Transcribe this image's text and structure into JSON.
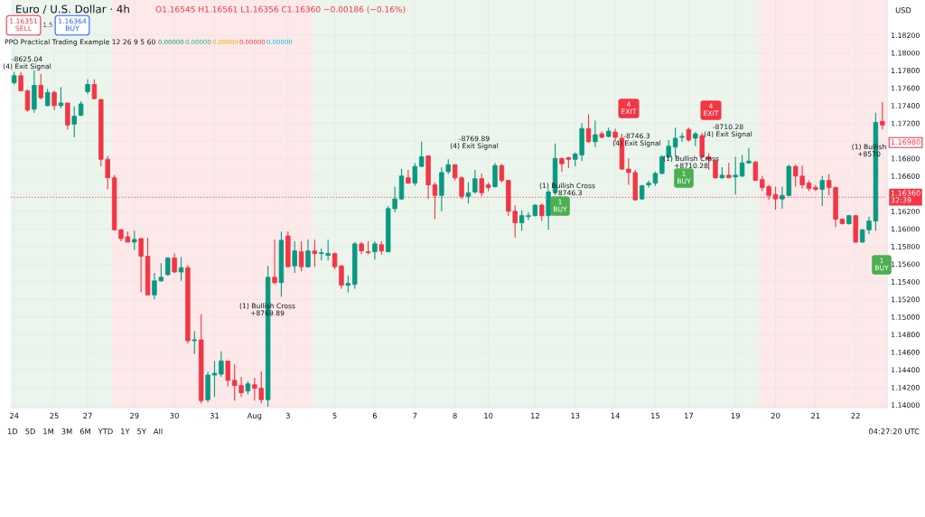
{
  "chart_data": {
    "type": "candlestick",
    "title": "Euro / U.S. Dollar · 4h",
    "subtitle": "O1.16545 H1.16561 L1.16356 C1.16360 −0.00186 (−0.16%)",
    "categories": [
      "24",
      null,
      null,
      null,
      null,
      null,
      "25",
      null,
      null,
      null,
      null,
      "27",
      null,
      null,
      null,
      null,
      null,
      null,
      "29",
      null,
      null,
      null,
      null,
      null,
      "30",
      null,
      null,
      null,
      null,
      null,
      "31",
      null,
      null,
      null,
      null,
      null,
      "Aug",
      null,
      null,
      null,
      null,
      "3",
      null,
      null,
      null,
      null,
      null,
      null,
      "5",
      null,
      null,
      null,
      null,
      null,
      "6",
      null,
      null,
      null,
      null,
      null,
      "7",
      null,
      null,
      null,
      null,
      null,
      "8",
      null,
      null,
      null,
      null,
      "10",
      null,
      null,
      null,
      null,
      null,
      null,
      "12",
      null,
      null,
      null,
      null,
      null,
      "13",
      null,
      null,
      null,
      null,
      null,
      "14",
      null,
      null,
      null,
      null,
      null,
      "15",
      null,
      null,
      null,
      null,
      "17",
      null,
      null,
      null,
      null,
      null,
      null,
      "19",
      null,
      null,
      null,
      null,
      null,
      "20",
      null,
      null,
      null,
      null,
      null,
      "21",
      null,
      null,
      null,
      null,
      null,
      "22",
      null,
      null,
      null,
      null
    ],
    "ohlc": [
      [
        1.1766,
        1.1778,
        1.1764,
        1.1774
      ],
      [
        1.1774,
        1.1778,
        1.1756,
        1.1757
      ],
      [
        1.1757,
        1.1758,
        1.1733,
        1.1735
      ],
      [
        1.1736,
        1.178,
        1.1732,
        1.1763
      ],
      [
        1.1763,
        1.1776,
        1.1747,
        1.1749
      ],
      [
        1.174,
        1.1759,
        1.1739,
        1.1755
      ],
      [
        1.1755,
        1.1757,
        1.1735,
        1.174
      ],
      [
        1.174,
        1.1761,
        1.1737,
        1.1743
      ],
      [
        1.1743,
        1.1743,
        1.1713,
        1.1718
      ],
      [
        1.1719,
        1.1739,
        1.1704,
        1.1728
      ],
      [
        1.1729,
        1.1745,
        1.1728,
        1.1742
      ],
      [
        1.1756,
        1.177,
        1.1753,
        1.1764
      ],
      [
        1.1764,
        1.177,
        1.1747,
        1.1748
      ],
      [
        1.1747,
        1.1747,
        1.1671,
        1.1679
      ],
      [
        1.1679,
        1.1683,
        1.1645,
        1.1658
      ],
      [
        1.1658,
        1.1661,
        1.1598,
        1.1599
      ],
      [
        1.1599,
        1.16,
        1.1586,
        1.1589
      ],
      [
        1.1591,
        1.1597,
        1.1585,
        1.1585
      ],
      [
        1.1585,
        1.1598,
        1.1576,
        1.1588
      ],
      [
        1.1589,
        1.159,
        1.1528,
        1.1569
      ],
      [
        1.1569,
        1.159,
        1.1525,
        1.1525
      ],
      [
        1.1525,
        1.155,
        1.152,
        1.1541
      ],
      [
        1.1541,
        1.1561,
        1.154,
        1.1545
      ],
      [
        1.1548,
        1.1568,
        1.1547,
        1.1567
      ],
      [
        1.1567,
        1.1572,
        1.155,
        1.1551
      ],
      [
        1.1551,
        1.1568,
        1.1541,
        1.1556
      ],
      [
        1.1556,
        1.1559,
        1.147,
        1.1473
      ],
      [
        1.1473,
        1.1484,
        1.1458,
        1.1474
      ],
      [
        1.1474,
        1.1503,
        1.1402,
        1.1405
      ],
      [
        1.1406,
        1.1438,
        1.1403,
        1.1434
      ],
      [
        1.1434,
        1.145,
        1.1409,
        1.1436
      ],
      [
        1.1435,
        1.1461,
        1.1432,
        1.145
      ],
      [
        1.145,
        1.145,
        1.1421,
        1.1428
      ],
      [
        1.1428,
        1.1446,
        1.1405,
        1.1422
      ],
      [
        1.1422,
        1.1432,
        1.1409,
        1.1414
      ],
      [
        1.1416,
        1.1427,
        1.1412,
        1.1424
      ],
      [
        1.1423,
        1.1431,
        1.1405,
        1.1419
      ],
      [
        1.1419,
        1.1438,
        1.1402,
        1.1406
      ],
      [
        1.1406,
        1.1558,
        1.1398,
        1.1545
      ],
      [
        1.1545,
        1.1588,
        1.1537,
        1.1539
      ],
      [
        1.1539,
        1.1597,
        1.1523,
        1.1587
      ],
      [
        1.1592,
        1.1597,
        1.1557,
        1.1557
      ],
      [
        1.1558,
        1.1586,
        1.155,
        1.1575
      ],
      [
        1.1574,
        1.1586,
        1.1552,
        1.1557
      ],
      [
        1.1557,
        1.1588,
        1.1556,
        1.1575
      ],
      [
        1.1575,
        1.1588,
        1.1557,
        1.1572
      ],
      [
        1.1572,
        1.1578,
        1.1564,
        1.1573
      ],
      [
        1.157,
        1.1588,
        1.1564,
        1.1572
      ],
      [
        1.1572,
        1.1573,
        1.1554,
        1.1557
      ],
      [
        1.1558,
        1.1559,
        1.1532,
        1.1536
      ],
      [
        1.1536,
        1.1547,
        1.1528,
        1.1538
      ],
      [
        1.1537,
        1.1585,
        1.1532,
        1.1583
      ],
      [
        1.1583,
        1.1585,
        1.1571,
        1.1575
      ],
      [
        1.1574,
        1.1586,
        1.1571,
        1.1573
      ],
      [
        1.1574,
        1.1586,
        1.1565,
        1.1583
      ],
      [
        1.1582,
        1.1586,
        1.1571,
        1.1575
      ],
      [
        1.1574,
        1.1626,
        1.1574,
        1.1623
      ],
      [
        1.1623,
        1.1648,
        1.1619,
        1.1634
      ],
      [
        1.1634,
        1.1668,
        1.1633,
        1.166
      ],
      [
        1.1658,
        1.1667,
        1.1651,
        1.1652
      ],
      [
        1.1652,
        1.1675,
        1.1649,
        1.1671
      ],
      [
        1.1671,
        1.1699,
        1.167,
        1.1682
      ],
      [
        1.1683,
        1.1683,
        1.1634,
        1.165
      ],
      [
        1.165,
        1.1653,
        1.1611,
        1.1638
      ],
      [
        1.1638,
        1.167,
        1.162,
        1.1664
      ],
      [
        1.1665,
        1.1679,
        1.1662,
        1.1673
      ],
      [
        1.1673,
        1.1673,
        1.1655,
        1.1658
      ],
      [
        1.1658,
        1.166,
        1.1634,
        1.1637
      ],
      [
        1.1637,
        1.1653,
        1.1629,
        1.1641
      ],
      [
        1.1642,
        1.1667,
        1.164,
        1.1657
      ],
      [
        1.1657,
        1.1663,
        1.1637,
        1.1641
      ],
      [
        1.165,
        1.1653,
        1.1643,
        1.1647
      ],
      [
        1.1648,
        1.1675,
        1.1647,
        1.1672
      ],
      [
        1.1672,
        1.1674,
        1.1653,
        1.1655
      ],
      [
        1.1655,
        1.1656,
        1.1615,
        1.162
      ],
      [
        1.162,
        1.1627,
        1.159,
        1.1607
      ],
      [
        1.1607,
        1.1621,
        1.1598,
        1.1615
      ],
      [
        1.1614,
        1.1619,
        1.161,
        1.1615
      ],
      [
        1.1615,
        1.1628,
        1.1614,
        1.1627
      ],
      [
        1.1627,
        1.1629,
        1.1609,
        1.1615
      ],
      [
        1.1615,
        1.1645,
        1.1599,
        1.1642
      ],
      [
        1.1642,
        1.1697,
        1.1641,
        1.168
      ],
      [
        1.168,
        1.1681,
        1.1665,
        1.1674
      ],
      [
        1.1681,
        1.1682,
        1.1669,
        1.1679
      ],
      [
        1.1679,
        1.1687,
        1.1671,
        1.1685
      ],
      [
        1.1684,
        1.172,
        1.1677,
        1.1714
      ],
      [
        1.1714,
        1.173,
        1.1698,
        1.1699
      ],
      [
        1.1699,
        1.1723,
        1.1693,
        1.1707
      ],
      [
        1.1708,
        1.1711,
        1.1703,
        1.1704
      ],
      [
        1.1705,
        1.1715,
        1.1704,
        1.1711
      ],
      [
        1.171,
        1.1714,
        1.1699,
        1.1704
      ],
      [
        1.1703,
        1.1708,
        1.1667,
        1.1668
      ],
      [
        1.1668,
        1.168,
        1.165,
        1.1664
      ],
      [
        1.1664,
        1.1667,
        1.1632,
        1.1633
      ],
      [
        1.1634,
        1.165,
        1.1633,
        1.1649
      ],
      [
        1.165,
        1.1655,
        1.1647,
        1.1652
      ],
      [
        1.1652,
        1.1665,
        1.1649,
        1.1663
      ],
      [
        1.1663,
        1.1684,
        1.1662,
        1.1682
      ],
      [
        1.1682,
        1.1701,
        1.168,
        1.1694
      ],
      [
        1.1693,
        1.1715,
        1.1682,
        1.1703
      ],
      [
        1.1704,
        1.1709,
        1.1699,
        1.1705
      ],
      [
        1.1713,
        1.1715,
        1.1699,
        1.1701
      ],
      [
        1.1703,
        1.171,
        1.1694,
        1.1708
      ],
      [
        1.1706,
        1.1709,
        1.168,
        1.1682
      ],
      [
        1.1682,
        1.1686,
        1.1667,
        1.1679
      ],
      [
        1.1677,
        1.1679,
        1.1657,
        1.1658
      ],
      [
        1.1658,
        1.167,
        1.1657,
        1.1661
      ],
      [
        1.1661,
        1.1675,
        1.1658,
        1.1658
      ],
      [
        1.1659,
        1.1682,
        1.1639,
        1.1661
      ],
      [
        1.166,
        1.1684,
        1.1659,
        1.1675
      ],
      [
        1.1675,
        1.1692,
        1.1674,
        1.1677
      ],
      [
        1.1676,
        1.1677,
        1.1655,
        1.1655
      ],
      [
        1.1656,
        1.166,
        1.1643,
        1.1647
      ],
      [
        1.1648,
        1.165,
        1.1633,
        1.1638
      ],
      [
        1.1639,
        1.1648,
        1.1622,
        1.1634
      ],
      [
        1.1634,
        1.1648,
        1.1623,
        1.1638
      ],
      [
        1.1638,
        1.1673,
        1.1637,
        1.1671
      ],
      [
        1.1671,
        1.1673,
        1.1648,
        1.166
      ],
      [
        1.166,
        1.1672,
        1.1646,
        1.165
      ],
      [
        1.1652,
        1.1655,
        1.1643,
        1.1646
      ],
      [
        1.1647,
        1.165,
        1.1643,
        1.1645
      ],
      [
        1.1645,
        1.166,
        1.1626,
        1.1655
      ],
      [
        1.1655,
        1.1662,
        1.1638,
        1.1647
      ],
      [
        1.1647,
        1.1648,
        1.1602,
        1.1611
      ],
      [
        1.1611,
        1.1612,
        1.1605,
        1.1606
      ],
      [
        1.1606,
        1.1616,
        1.1605,
        1.1615
      ],
      [
        1.1615,
        1.1616,
        1.1584,
        1.1585
      ],
      [
        1.1585,
        1.16,
        1.1584,
        1.1599
      ],
      [
        1.1599,
        1.1614,
        1.1594,
        1.1609
      ],
      [
        1.1609,
        1.1732,
        1.1598,
        1.1721
      ],
      [
        1.1722,
        1.1744,
        1.1713,
        1.1718
      ]
    ],
    "colors": [
      "#089981",
      "#f23645",
      "#f23645",
      "#089981",
      "#f23645",
      "#089981",
      "#f23645",
      "#089981",
      "#f23645",
      "#089981",
      "#089981",
      "#089981",
      "#f23645",
      "#f23645",
      "#f23645",
      "#f23645",
      "#f23645",
      "#f23645",
      "#089981",
      "#f23645",
      "#f23645",
      "#089981",
      "#089981",
      "#089981",
      "#f23645",
      "#089981",
      "#f23645",
      "#089981",
      "#f23645",
      "#089981",
      "#089981",
      "#089981",
      "#f23645",
      "#f23645",
      "#f23645",
      "#089981",
      "#f23645",
      "#f23645",
      "#089981",
      "#f23645",
      "#089981",
      "#f23645",
      "#089981",
      "#f23645",
      "#089981",
      "#f23645",
      "#089981",
      "#089981",
      "#f23645",
      "#f23645",
      "#089981",
      "#089981",
      "#f23645",
      "#f23645",
      "#089981",
      "#f23645",
      "#089981",
      "#089981",
      "#089981",
      "#f23645",
      "#089981",
      "#089981",
      "#f23645",
      "#f23645",
      "#089981",
      "#089981",
      "#f23645",
      "#f23645",
      "#089981",
      "#089981",
      "#f23645",
      "#f23645",
      "#089981",
      "#f23645",
      "#f23645",
      "#f23645",
      "#089981",
      "#089981",
      "#089981",
      "#f23645",
      "#089981",
      "#089981",
      "#f23645",
      "#f23645",
      "#089981",
      "#089981",
      "#f23645",
      "#089981",
      "#f23645",
      "#089981",
      "#f23645",
      "#f23645",
      "#f23645",
      "#f23645",
      "#089981",
      "#089981",
      "#089981",
      "#089981",
      "#089981",
      "#089981",
      "#089981",
      "#f23645",
      "#089981",
      "#f23645",
      "#f23645",
      "#f23645",
      "#089981",
      "#f23645",
      "#089981",
      "#089981",
      "#089981",
      "#f23645",
      "#f23645",
      "#f23645",
      "#f23645",
      "#089981",
      "#089981",
      "#f23645",
      "#f23645",
      "#f23645",
      "#f23645",
      "#089981",
      "#f23645",
      "#f23645",
      "#f23645",
      "#089981",
      "#f23645",
      "#089981",
      "#089981",
      "#089981",
      "#f23645"
    ],
    "ylim": [
      1.1397,
      1.186
    ],
    "yticks": [
      {
        "value": 1.14,
        "label": "1.14000"
      },
      {
        "value": 1.142,
        "label": "1.14200"
      },
      {
        "value": 1.144,
        "label": "1.14400"
      },
      {
        "value": 1.146,
        "label": "1.14600"
      },
      {
        "value": 1.148,
        "label": "1.14800"
      },
      {
        "value": 1.15,
        "label": "1.15000"
      },
      {
        "value": 1.152,
        "label": "1.15200"
      },
      {
        "value": 1.154,
        "label": "1.15400"
      },
      {
        "value": 1.156,
        "label": "1.15600"
      },
      {
        "value": 1.158,
        "label": "1.15800"
      },
      {
        "value": 1.16,
        "label": "1.16000"
      },
      {
        "value": 1.162,
        "label": "1.16200"
      },
      {
        "value": 1.164,
        "label": null
      },
      {
        "value": 1.166,
        "label": "1.16600"
      },
      {
        "value": 1.168,
        "label": "1.16800"
      },
      {
        "value": 1.17,
        "label": null
      },
      {
        "value": 1.172,
        "label": "1.17200"
      },
      {
        "value": 1.174,
        "label": "1.17400"
      },
      {
        "value": 1.176,
        "label": "1.17600"
      },
      {
        "value": 1.178,
        "label": "1.17800"
      },
      {
        "value": 1.18,
        "label": "1.18000"
      },
      {
        "value": 1.182,
        "label": "1.18200"
      }
    ],
    "grid": true,
    "ref_lines": [
      {
        "axis": "y",
        "value": 1.1636,
        "label": "1.16360\n32:39",
        "color": "#f23645",
        "line_style": "dotted"
      }
    ],
    "annotations": [
      "1.16351\nSELL",
      "1.5",
      "1.16364\nBUY",
      "PPO Practical Trading Example 12 26 9 5 60",
      "0.00000",
      "0.00000",
      "0.00000",
      "0.00000",
      "0.00000",
      "USD",
      "1D   5D   1M   3M   6M   YTD   1Y   5Y   All",
      "04:27:20 UTC",
      {
        "text": "1.16980",
        "y": 1.1698
      },
      "-8625.04\n(4) Exit Signal",
      "(1) Bullish Cross\n+8769.89",
      "-8769.89\n(4) Exit Signal",
      "(1) Bullish Cross\n+8746.3",
      "-8746.3\n(4) Exit Signal",
      "(1) Bullish Cross\n+8710.28",
      "-8710.28\n(4) Exit Signal",
      "(1) Bullish\n+8570",
      "4\nEXIT",
      "4\nEXIT",
      "1\nBUY",
      "1\nBUY",
      "1\nBUY"
    ]
  }
}
